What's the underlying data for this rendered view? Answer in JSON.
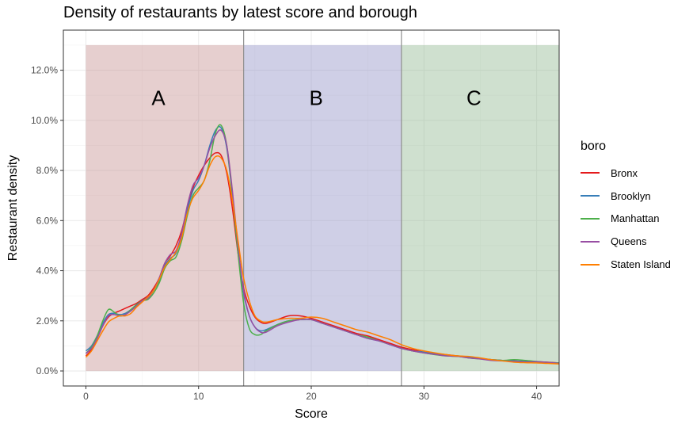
{
  "chart_data": {
    "type": "line",
    "title": "Density of restaurants by latest score and borough",
    "xlabel": "Score",
    "ylabel": "Restaurant density",
    "xlim": [
      -2,
      42
    ],
    "ylim": [
      -0.6,
      13.6
    ],
    "x_ticks": [
      0,
      10,
      20,
      30,
      40
    ],
    "y_ticks": [
      0,
      2,
      4,
      6,
      8,
      10,
      12
    ],
    "y_tick_labels": [
      "0.0%",
      "2.0%",
      "4.0%",
      "6.0%",
      "8.0%",
      "10.0%",
      "12.0%"
    ],
    "grid": true,
    "legend_title": "boro",
    "legend_position": "right",
    "regions": [
      {
        "label": "A",
        "x_start": 0,
        "x_end": 14,
        "y_max": 13,
        "color": "#c89494"
      },
      {
        "label": "B",
        "x_start": 14,
        "x_end": 28,
        "y_max": 13,
        "color": "#9595c8"
      },
      {
        "label": "C",
        "x_start": 28,
        "x_end": 42,
        "y_max": 13,
        "color": "#95ba95"
      }
    ],
    "vlines": [
      14,
      28
    ],
    "x": [
      0,
      0.5,
      1,
      1.5,
      2,
      2.5,
      3,
      3.5,
      4,
      4.5,
      5,
      5.5,
      6,
      6.5,
      7,
      7.5,
      8,
      8.5,
      9,
      9.5,
      10,
      10.5,
      11,
      11.5,
      12,
      12.5,
      13,
      13.5,
      14,
      14.5,
      15,
      15.5,
      16,
      17,
      18,
      19,
      20,
      21,
      22,
      23,
      24,
      25,
      26,
      27,
      28,
      29,
      30,
      31,
      32,
      33,
      34,
      35,
      36,
      37,
      38,
      39,
      40,
      41,
      42
    ],
    "series": [
      {
        "name": "Bronx",
        "color": "#e41a1c",
        "values": [
          0.6,
          0.85,
          1.3,
          1.8,
          2.15,
          2.3,
          2.4,
          2.5,
          2.6,
          2.7,
          2.85,
          3.0,
          3.3,
          3.7,
          4.3,
          4.6,
          5.0,
          5.6,
          6.5,
          7.3,
          7.8,
          8.2,
          8.5,
          8.7,
          8.6,
          7.9,
          6.5,
          4.7,
          3.3,
          2.6,
          2.15,
          1.95,
          1.9,
          2.05,
          2.2,
          2.2,
          2.1,
          1.95,
          1.8,
          1.65,
          1.5,
          1.4,
          1.25,
          1.1,
          0.95,
          0.85,
          0.75,
          0.7,
          0.65,
          0.6,
          0.55,
          0.5,
          0.45,
          0.42,
          0.4,
          0.38,
          0.37,
          0.35,
          0.32
        ]
      },
      {
        "name": "Brooklyn",
        "color": "#377eb8",
        "values": [
          0.8,
          1.0,
          1.4,
          1.9,
          2.25,
          2.3,
          2.25,
          2.3,
          2.45,
          2.65,
          2.8,
          2.95,
          3.2,
          3.6,
          4.2,
          4.5,
          4.7,
          5.4,
          6.4,
          7.2,
          7.6,
          8.2,
          9.0,
          9.6,
          9.7,
          8.9,
          7.0,
          4.8,
          3.1,
          2.2,
          1.75,
          1.6,
          1.65,
          1.85,
          2.0,
          2.05,
          2.05,
          1.9,
          1.75,
          1.6,
          1.45,
          1.3,
          1.2,
          1.05,
          0.9,
          0.8,
          0.75,
          0.68,
          0.62,
          0.6,
          0.55,
          0.5,
          0.45,
          0.42,
          0.4,
          0.38,
          0.37,
          0.34,
          0.3
        ]
      },
      {
        "name": "Manhattan",
        "color": "#4daf4a",
        "values": [
          0.7,
          0.95,
          1.4,
          2.0,
          2.45,
          2.35,
          2.2,
          2.25,
          2.45,
          2.65,
          2.8,
          2.85,
          3.1,
          3.5,
          4.1,
          4.4,
          4.55,
          5.2,
          6.2,
          7.0,
          7.3,
          7.6,
          8.4,
          9.5,
          9.8,
          9.0,
          7.0,
          4.7,
          2.7,
          1.7,
          1.45,
          1.45,
          1.6,
          1.85,
          2.0,
          2.05,
          2.05,
          1.9,
          1.75,
          1.6,
          1.45,
          1.35,
          1.2,
          1.05,
          0.9,
          0.8,
          0.72,
          0.65,
          0.6,
          0.58,
          0.52,
          0.48,
          0.45,
          0.42,
          0.45,
          0.42,
          0.38,
          0.34,
          0.32
        ]
      },
      {
        "name": "Queens",
        "color": "#984ea3",
        "values": [
          0.7,
          0.9,
          1.3,
          1.8,
          2.2,
          2.25,
          2.2,
          2.25,
          2.4,
          2.6,
          2.8,
          2.9,
          3.2,
          3.7,
          4.3,
          4.65,
          4.8,
          5.5,
          6.6,
          7.4,
          7.7,
          8.2,
          8.9,
          9.4,
          9.6,
          9.0,
          7.2,
          5.0,
          3.2,
          2.2,
          1.75,
          1.55,
          1.55,
          1.8,
          1.95,
          2.05,
          2.05,
          1.9,
          1.75,
          1.6,
          1.45,
          1.3,
          1.2,
          1.05,
          0.9,
          0.8,
          0.72,
          0.66,
          0.6,
          0.58,
          0.52,
          0.48,
          0.42,
          0.4,
          0.38,
          0.36,
          0.37,
          0.34,
          0.3
        ]
      },
      {
        "name": "Staten Island",
        "color": "#ff7f00",
        "values": [
          0.55,
          0.8,
          1.2,
          1.6,
          1.95,
          2.1,
          2.2,
          2.2,
          2.3,
          2.55,
          2.75,
          2.95,
          3.2,
          3.65,
          4.15,
          4.45,
          4.75,
          5.3,
          6.3,
          6.9,
          7.2,
          7.6,
          8.2,
          8.55,
          8.5,
          8.0,
          6.8,
          5.2,
          3.7,
          2.8,
          2.2,
          2.0,
          1.95,
          2.05,
          2.1,
          2.1,
          2.15,
          2.1,
          1.95,
          1.8,
          1.65,
          1.55,
          1.4,
          1.25,
          1.05,
          0.9,
          0.8,
          0.72,
          0.65,
          0.6,
          0.58,
          0.52,
          0.45,
          0.4,
          0.35,
          0.33,
          0.32,
          0.3,
          0.28
        ]
      }
    ]
  }
}
